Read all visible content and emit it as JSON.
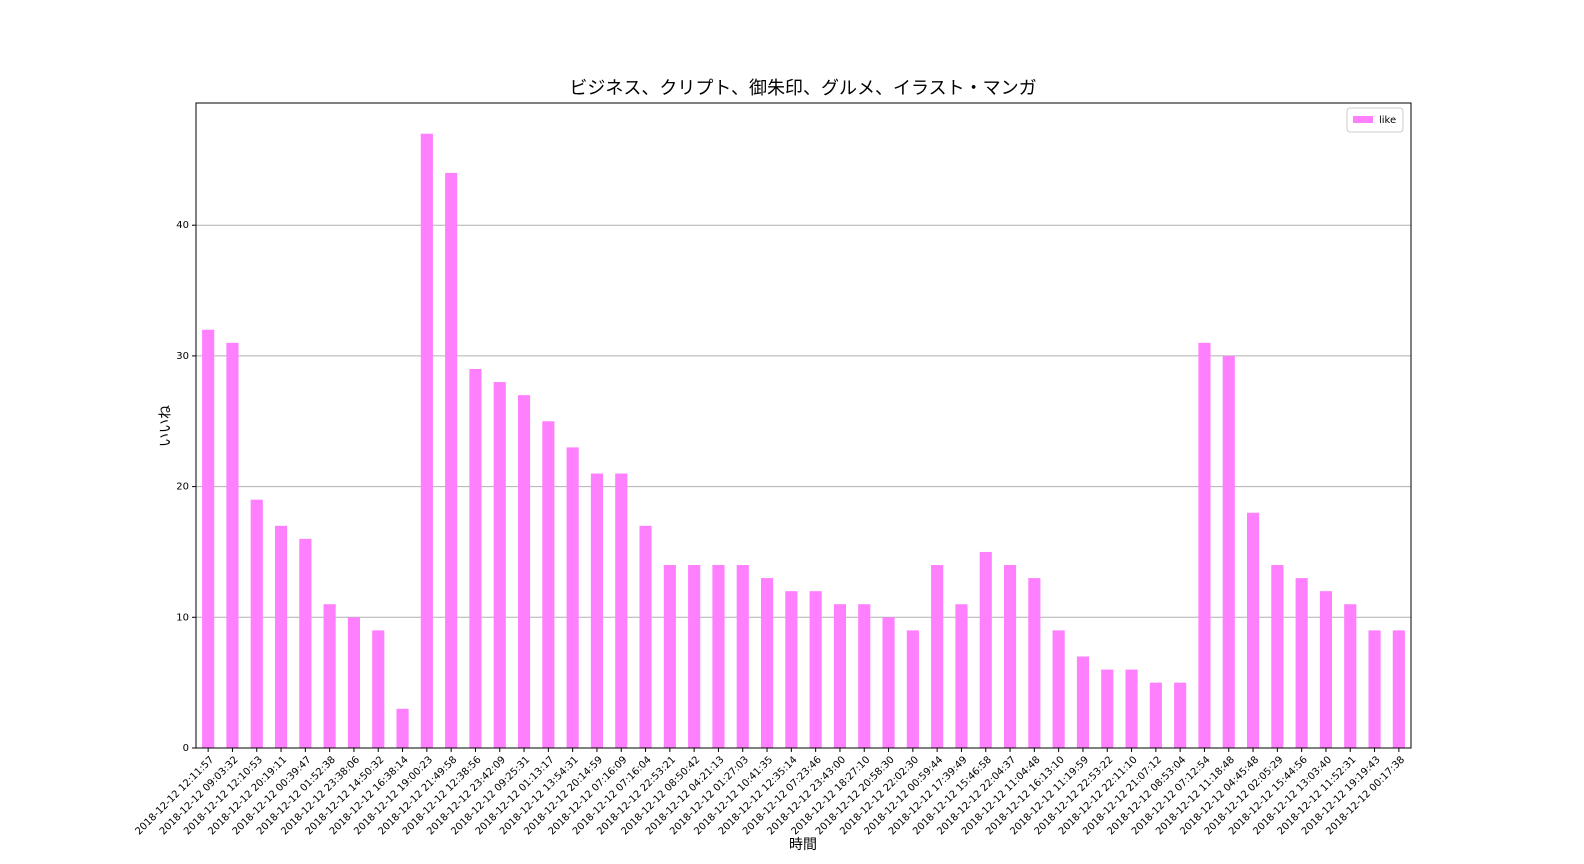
{
  "chart_data": {
    "type": "bar",
    "title": "ビジネス、クリプト、御朱印、グルメ、イラスト・マンガ",
    "x_label": "時間",
    "y_label": "いいね",
    "categories": [
      "2018-12-12 12:11:57",
      "2018-12-12 09:03:32",
      "2018-12-12 12:10:53",
      "2018-12-12 20:19:11",
      "2018-12-12 00:39:47",
      "2018-12-12 01:52:38",
      "2018-12-12 23:38:06",
      "2018-12-12 14:50:32",
      "2018-12-12 16:38:14",
      "2018-12-12 19:00:23",
      "2018-12-12 21:49:58",
      "2018-12-12 12:38:56",
      "2018-12-12 23:42:09",
      "2018-12-12 09:25:31",
      "2018-12-12 01:13:17",
      "2018-12-12 13:54:31",
      "2018-12-12 20:14:59",
      "2018-12-12 07:16:09",
      "2018-12-12 07:16:04",
      "2018-12-12 22:53:21",
      "2018-12-12 08:50:42",
      "2018-12-12 04:21:13",
      "2018-12-12 01:27:03",
      "2018-12-12 10:41:35",
      "2018-12-12 12:35:14",
      "2018-12-12 07:23:46",
      "2018-12-12 23:43:00",
      "2018-12-12 18:27:10",
      "2018-12-12 20:58:30",
      "2018-12-12 22:02:30",
      "2018-12-12 00:59:44",
      "2018-12-12 17:39:49",
      "2018-12-12 15:46:58",
      "2018-12-12 22:04:37",
      "2018-12-12 11:04:48",
      "2018-12-12 16:13:10",
      "2018-12-12 11:19:59",
      "2018-12-12 22:53:22",
      "2018-12-12 22:11:10",
      "2018-12-12 21:07:12",
      "2018-12-12 08:53:04",
      "2018-12-12 07:12:54",
      "2018-12-12 11:18:48",
      "2018-12-12 04:45:48",
      "2018-12-12 02:05:29",
      "2018-12-12 15:44:56",
      "2018-12-12 13:03:40",
      "2018-12-12 11:52:31",
      "2018-12-12 19:19:43",
      "2018-12-12 00:17:38"
    ],
    "series": [
      {
        "name": "like",
        "color": "#ff80ff",
        "values": [
          32,
          31,
          19,
          17,
          16,
          11,
          10,
          9,
          3,
          47,
          44,
          29,
          28,
          27,
          25,
          23,
          21,
          21,
          17,
          14,
          14,
          14,
          14,
          13,
          12,
          12,
          11,
          11,
          10,
          9,
          14,
          11,
          15,
          14,
          13,
          9,
          7,
          6,
          6,
          5,
          5,
          31,
          30,
          18,
          14,
          13,
          12,
          11,
          9,
          9
        ]
      }
    ],
    "ylim": [
      0,
      49.35
    ],
    "yticks": [
      0,
      10,
      20,
      30,
      40
    ],
    "grid": true,
    "legend": "upper right"
  }
}
